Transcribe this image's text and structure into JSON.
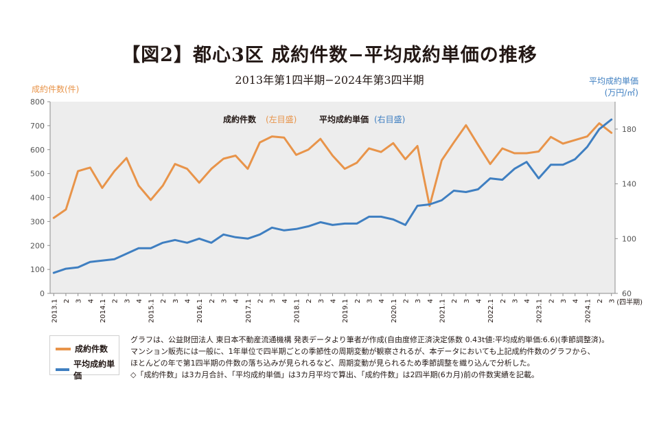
{
  "title": "【図2】都心3区 成約件数−平均成約単価の推移",
  "subtitle": "2013年第1四半期−2024年第3四半期",
  "colors": {
    "count": "#E8944A",
    "price": "#3F7FC1",
    "plot_bg": "#EDEDED",
    "text": "#231815"
  },
  "chart_data": {
    "type": "line",
    "left_axis": {
      "label": "成約件数(件)",
      "ylim": [
        0,
        800
      ],
      "ticks": [
        0,
        100,
        200,
        300,
        400,
        500,
        600,
        700,
        800
      ]
    },
    "right_axis": {
      "label_line1": "平均成約単価",
      "label_line2": "(万円/㎡)",
      "ylim": [
        60,
        200
      ],
      "ticks": [
        60,
        100,
        140,
        180
      ]
    },
    "x_axis_unit": "(四半期)",
    "inline_legend": {
      "count_label": "成約件数",
      "count_axis": "(左目盛)",
      "price_label": "平均成約単価",
      "price_axis": "(右目盛)"
    },
    "categories": [
      "2013.1",
      "2",
      "3",
      "4",
      "2014.1",
      "2",
      "3",
      "4",
      "2015.1",
      "2",
      "3",
      "4",
      "2016.1",
      "2",
      "3",
      "4",
      "2017.1",
      "2",
      "3",
      "4",
      "2018.1",
      "2",
      "3",
      "4",
      "2019.1",
      "2",
      "3",
      "4",
      "2020.1",
      "2",
      "3",
      "4",
      "2021.1",
      "2",
      "3",
      "4",
      "2022.1",
      "2",
      "3",
      "4",
      "2023.1",
      "2",
      "3",
      "4",
      "2024.1",
      "2",
      "3"
    ],
    "series": [
      {
        "name": "成約件数",
        "axis": "left",
        "values": [
          315,
          350,
          510,
          525,
          440,
          510,
          565,
          450,
          390,
          450,
          540,
          520,
          462,
          520,
          562,
          575,
          520,
          630,
          655,
          650,
          578,
          600,
          645,
          575,
          520,
          545,
          605,
          590,
          627,
          560,
          615,
          365,
          555,
          630,
          702,
          620,
          540,
          605,
          585,
          585,
          592,
          653,
          625,
          640,
          655,
          710,
          670
        ]
      },
      {
        "name": "平均成約単価",
        "axis": "right",
        "values": [
          75,
          78,
          79,
          83,
          84,
          85,
          89,
          93,
          93,
          97,
          99,
          97,
          100,
          97,
          103,
          101,
          100,
          103,
          108,
          106,
          107,
          109,
          112,
          110,
          111,
          111,
          116,
          116,
          114,
          110,
          124,
          125,
          128,
          135,
          134,
          136,
          144,
          143,
          151,
          156,
          144,
          154,
          154,
          158,
          167,
          180,
          187
        ]
      }
    ]
  },
  "legend": {
    "count": "成約件数",
    "price": "平均成約単価"
  },
  "notes": [
    "グラフは、公益財団法人 東日本不動産流通機構 発表データより筆者が作成(自由度修正済決定係数 0.43t値:平均成約単価:6.6)(季節調整済)。",
    "マンション販売には一般に、1年単位で四半期ごとの季節性の周期変動が観察されるが、本データにおいても上記成約件数のグラフから、",
    "ほとんどの年で第1四半期の件数の落ち込みが見られるなど、周期変動が見られるため季節調整を織り込んで分析した。",
    "◇「成約件数」は3カ月合計、「平均成約単価」は3カ月平均で算出、「成約件数」は2四半期(6カ月)前の件数実績を記載。"
  ]
}
